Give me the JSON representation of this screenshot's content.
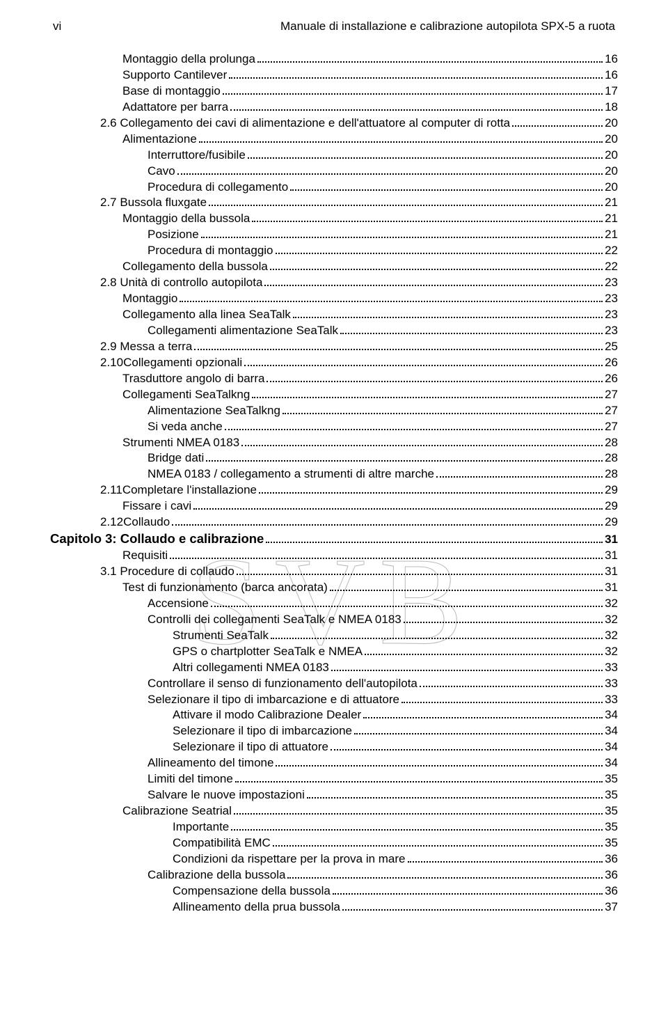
{
  "header": {
    "page_number": "vi",
    "title": "Manuale di installazione e calibrazione autopilota SPX-5 a ruota"
  },
  "watermark": "SVB",
  "toc": [
    {
      "indent": 2,
      "text": "Montaggio della prolunga",
      "page": "16"
    },
    {
      "indent": 2,
      "text": "Supporto Cantilever",
      "page": "16"
    },
    {
      "indent": 2,
      "text": "Base di montaggio",
      "page": "17"
    },
    {
      "indent": 2,
      "text": "Adattatore per barra",
      "page": "18"
    },
    {
      "indent": 1,
      "text": "2.6 Collegamento dei cavi di alimentazione e dell'attuatore al computer di rotta",
      "page": "20"
    },
    {
      "indent": 2,
      "text": "Alimentazione",
      "page": "20"
    },
    {
      "indent": 3,
      "text": "Interruttore/fusibile",
      "page": "20"
    },
    {
      "indent": 3,
      "text": "Cavo",
      "page": "20"
    },
    {
      "indent": 3,
      "text": "Procedura di collegamento",
      "page": "20"
    },
    {
      "indent": 1,
      "text": "2.7 Bussola fluxgate",
      "page": "21"
    },
    {
      "indent": 2,
      "text": "Montaggio della bussola",
      "page": "21"
    },
    {
      "indent": 3,
      "text": "Posizione",
      "page": "21"
    },
    {
      "indent": 3,
      "text": "Procedura di montaggio",
      "page": "22"
    },
    {
      "indent": 2,
      "text": "Collegamento della bussola",
      "page": "22"
    },
    {
      "indent": 1,
      "text": "2.8 Unità di controllo autopilota",
      "page": "23"
    },
    {
      "indent": 2,
      "text": "Montaggio",
      "page": "23"
    },
    {
      "indent": 2,
      "text": "Collegamento alla linea SeaTalk",
      "page": "23"
    },
    {
      "indent": 3,
      "text": "Collegamenti alimentazione SeaTalk",
      "page": "23"
    },
    {
      "indent": 1,
      "text": "2.9 Messa a terra",
      "page": "25"
    },
    {
      "indent": 1,
      "text": "2.10Collegamenti opzionali",
      "page": "26"
    },
    {
      "indent": 2,
      "text": "Trasduttore angolo di barra",
      "page": "26"
    },
    {
      "indent": 2,
      "text": "Collegamenti SeaTalkng",
      "page": "27"
    },
    {
      "indent": 3,
      "text": "Alimentazione SeaTalkng",
      "page": "27"
    },
    {
      "indent": 3,
      "text": "Si veda anche",
      "page": "27"
    },
    {
      "indent": 2,
      "text": "Strumenti NMEA 0183",
      "page": "28"
    },
    {
      "indent": 3,
      "text": "Bridge dati",
      "page": "28"
    },
    {
      "indent": 3,
      "text": "NMEA 0183 / collegamento a strumenti di altre marche",
      "page": "28"
    },
    {
      "indent": 1,
      "text": "2.11Completare l'installazione",
      "page": "29"
    },
    {
      "indent": 2,
      "text": "Fissare i cavi",
      "page": "29"
    },
    {
      "indent": 1,
      "text": "2.12Collaudo",
      "page": "29"
    },
    {
      "indent": 0,
      "text": "Capitolo 3: Collaudo e calibrazione",
      "page": "31",
      "chapter": true
    },
    {
      "indent": 2,
      "text": "Requisiti",
      "page": "31"
    },
    {
      "indent": 1,
      "text": "3.1 Procedure di collaudo",
      "page": "31"
    },
    {
      "indent": 2,
      "text": "Test di funzionamento (barca ancorata)",
      "page": "31"
    },
    {
      "indent": 3,
      "text": "Accensione",
      "page": "32"
    },
    {
      "indent": 3,
      "text": "Controlli dei collegamenti SeaTalk e NMEA 0183",
      "page": "32"
    },
    {
      "indent": 3,
      "text": "Strumenti SeaTalk",
      "page": "32",
      "subindent": true
    },
    {
      "indent": 3,
      "text": "GPS o chartplotter SeaTalk e NMEA",
      "page": "32",
      "subindent": true
    },
    {
      "indent": 3,
      "text": "Altri collegamenti NMEA 0183",
      "page": "33",
      "subindent": true
    },
    {
      "indent": 3,
      "text": "Controllare il senso di funzionamento dell'autopilota",
      "page": "33"
    },
    {
      "indent": 3,
      "text": "Selezionare il tipo di imbarcazione e di attuatore",
      "page": "33"
    },
    {
      "indent": 3,
      "text": "Attivare il modo Calibrazione Dealer",
      "page": "34",
      "subindent": true
    },
    {
      "indent": 3,
      "text": "Selezionare il tipo di imbarcazione",
      "page": "34",
      "subindent": true
    },
    {
      "indent": 3,
      "text": "Selezionare il tipo di attuatore",
      "page": "34",
      "subindent": true
    },
    {
      "indent": 3,
      "text": "Allineamento del timone",
      "page": "34"
    },
    {
      "indent": 3,
      "text": "Limiti del timone",
      "page": "35"
    },
    {
      "indent": 3,
      "text": "Salvare le nuove impostazioni",
      "page": "35"
    },
    {
      "indent": 2,
      "text": "Calibrazione Seatrial",
      "page": "35"
    },
    {
      "indent": 3,
      "text": "Importante",
      "page": "35",
      "subindent": true
    },
    {
      "indent": 3,
      "text": "Compatibilità EMC",
      "page": "35",
      "subindent": true
    },
    {
      "indent": 3,
      "text": "Condizioni da rispettare per la prova in mare",
      "page": "36",
      "subindent": true
    },
    {
      "indent": 3,
      "text": "Calibrazione della bussola",
      "page": "36"
    },
    {
      "indent": 3,
      "text": "Compensazione della bussola",
      "page": "36",
      "subindent": true
    },
    {
      "indent": 3,
      "text": "Allineamento della prua bussola",
      "page": "37",
      "subindent": true
    }
  ]
}
